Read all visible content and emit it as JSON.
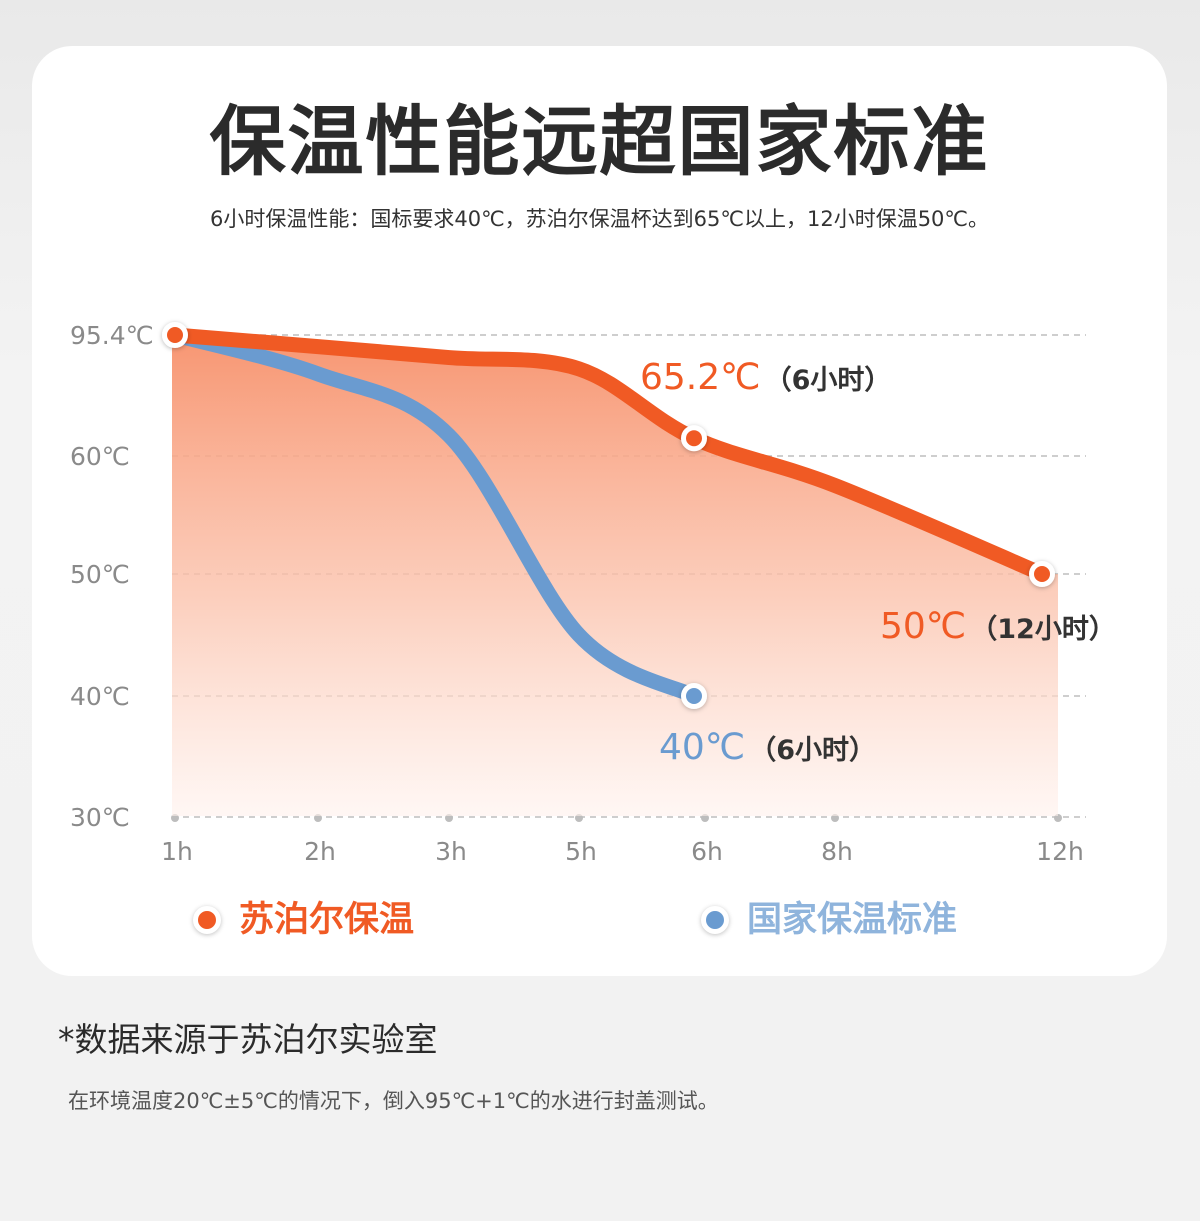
{
  "header": {
    "title": "保温性能远超国家标准",
    "subtitle": "6小时保温性能：国标要求40℃，苏泊尔保温杯达到65℃以上，12小时保温50℃。"
  },
  "colors": {
    "supor": "#f05a24",
    "national": "#6a9bd0",
    "axis_text": "#8a8a8a"
  },
  "chart_data": {
    "type": "line",
    "title": "",
    "xlabel": "",
    "ylabel": "",
    "categories": [
      "1h",
      "2h",
      "3h",
      "5h",
      "6h",
      "8h",
      "12h"
    ],
    "yticks": [
      "95.4℃",
      "60℃",
      "50℃",
      "40℃",
      "30℃"
    ],
    "grid": true,
    "legend_position": "bottom",
    "series": [
      {
        "name": "苏泊尔保温",
        "color": "#f05a24",
        "points": [
          {
            "x": "1h",
            "y": 95.4
          },
          {
            "x": "2h",
            "y": 92.0
          },
          {
            "x": "3h",
            "y": 88.8
          },
          {
            "x": "5h",
            "y": 85.5
          },
          {
            "x": "6h",
            "y": 65.2
          },
          {
            "x": "8h",
            "y": 57.5
          },
          {
            "x": "12h",
            "y": 50
          }
        ]
      },
      {
        "name": "国家保温标准",
        "color": "#6a9bd0",
        "points": [
          {
            "x": "1h",
            "y": 95.4
          },
          {
            "x": "2h",
            "y": 84.0
          },
          {
            "x": "3h",
            "y": 66.0
          },
          {
            "x": "5h",
            "y": 45.0
          },
          {
            "x": "6h",
            "y": 40
          }
        ]
      }
    ],
    "annotations": [
      {
        "series": 0,
        "x": "6h",
        "value": "65.2℃",
        "note": "（6小时）"
      },
      {
        "series": 0,
        "x": "12h",
        "value": "50℃",
        "note": "（12小时）"
      },
      {
        "series": 1,
        "x": "6h",
        "value": "40℃",
        "note": "（6小时）"
      }
    ]
  },
  "footer": {
    "source_title": "*数据来源于苏泊尔实验室",
    "source_note": "在环境温度20℃±5℃的情况下，倒入95℃+1℃的水进行封盖测试。"
  }
}
